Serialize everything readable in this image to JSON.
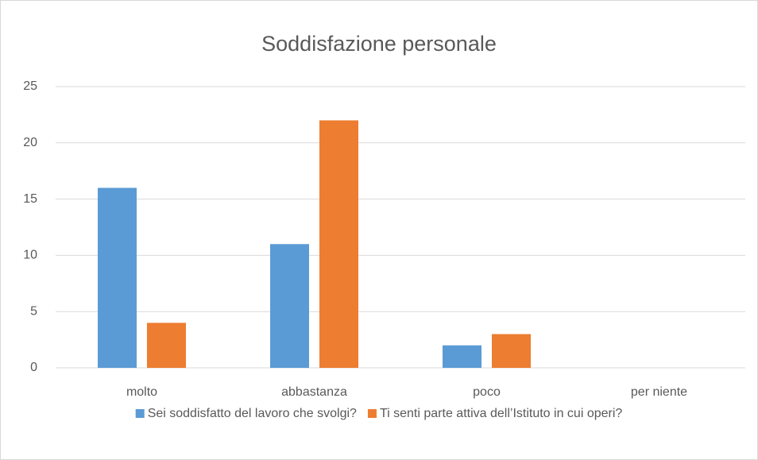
{
  "chart_data": {
    "type": "bar",
    "title": "Soddisfazione personale",
    "categories": [
      "molto",
      "abbastanza",
      "poco",
      "per niente"
    ],
    "series": [
      {
        "name": "Sei soddisfatto del lavoro che svolgi?",
        "color": "#5b9bd5",
        "values": [
          16,
          11,
          2,
          0
        ]
      },
      {
        "name": "Ti senti parte attiva dell’Istituto in cui operi?",
        "color": "#ed7d31",
        "values": [
          4,
          22,
          3,
          0
        ]
      }
    ],
    "ylim": [
      0,
      25
    ],
    "yticks": [
      0,
      5,
      10,
      15,
      20,
      25
    ],
    "grid": true,
    "legend": "bottom"
  }
}
